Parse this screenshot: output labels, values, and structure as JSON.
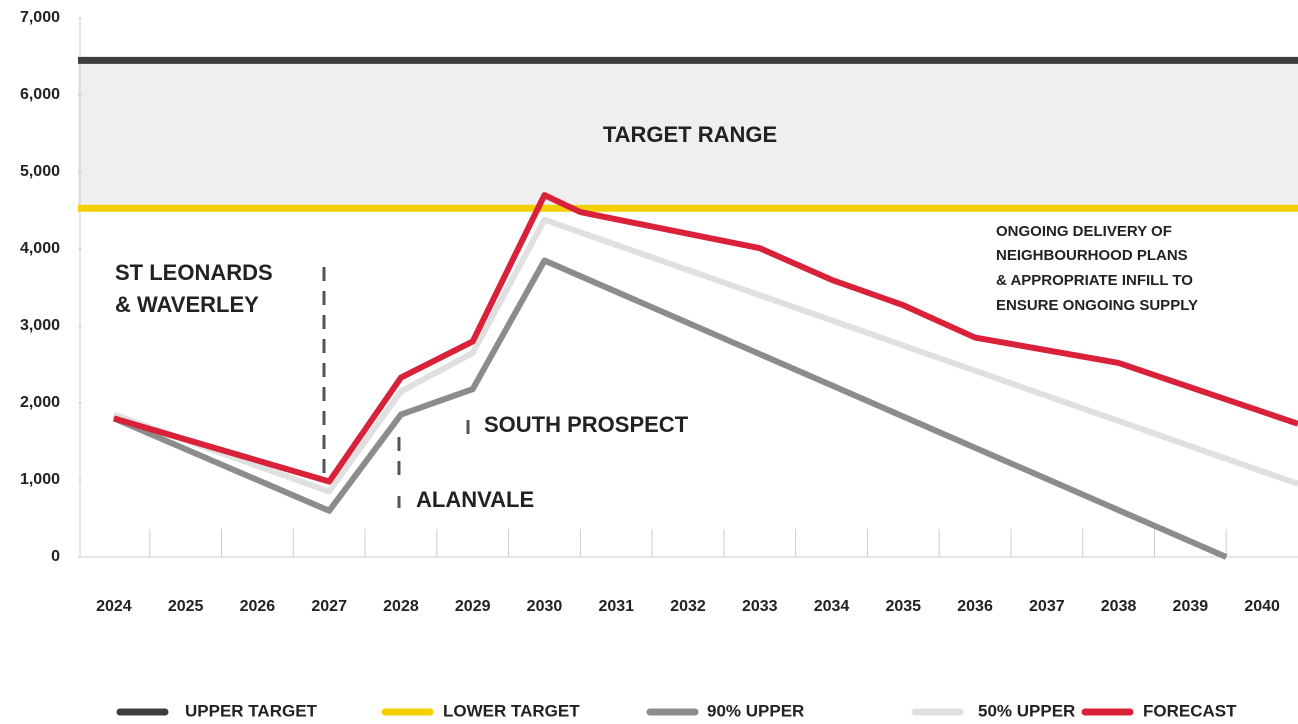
{
  "chart_data": {
    "type": "line",
    "xlim": [
      2023.5,
      2040.5
    ],
    "xticks": [
      2024,
      2025,
      2026,
      2027,
      2028,
      2029,
      2030,
      2031,
      2032,
      2033,
      2034,
      2035,
      2036,
      2037,
      2038,
      2039,
      2040
    ],
    "ylim": [
      0,
      7000
    ],
    "yticks": [
      0,
      {
        "value": 1000,
        "label": "1,000"
      },
      {
        "value": 2000,
        "label": "2,000"
      },
      {
        "value": 3000,
        "label": "3,000"
      },
      {
        "value": 4000,
        "label": "4,000"
      },
      {
        "value": 5000,
        "label": "5,000"
      },
      {
        "value": 6000,
        "label": "6,000"
      },
      {
        "value": 7000,
        "label": "7,000"
      }
    ],
    "band_label": "TARGET RANGE",
    "band_color": "#efefef",
    "annotations": [
      "ONGOING DELIVERY OF",
      "NEIGHBOURHOOD PLANS",
      "& APPROPRIATE INFILL TO",
      "ENSURE ONGOING SUPPLY",
      "ST LEONARDS",
      "& WAVERLEY",
      "SOUTH PROSPECT",
      "ALANVALE"
    ],
    "series": [
      {
        "name": "UPPER TARGET",
        "color": "#3d3d3d",
        "value": 6450
      },
      {
        "name": "LOWER TARGET",
        "color": "#f5d000",
        "value": 4530
      },
      {
        "name": "90% UPPER",
        "color": "#8c8c8c",
        "x": [
          2024,
          2027,
          2028,
          2029,
          2030,
          2034,
          2039.5
        ],
        "values": [
          1800,
          600,
          1850,
          2180,
          3850,
          2230,
          0
        ]
      },
      {
        "name": "50% UPPER",
        "color": "#e0e0e0",
        "x": [
          2024,
          2027,
          2028,
          2029,
          2030,
          2040.5
        ],
        "values": [
          1850,
          850,
          2150,
          2650,
          4380,
          950
        ]
      },
      {
        "name": "FORECAST",
        "color": "#d9223a",
        "x": [
          2024,
          2027,
          2028,
          2029,
          2030,
          2030.5,
          2033,
          2034,
          2035,
          2036,
          2038,
          2040.5
        ],
        "values": [
          1800,
          980,
          2330,
          2800,
          4700,
          4480,
          4010,
          3600,
          3270,
          2850,
          2520,
          1730
        ]
      }
    ]
  }
}
